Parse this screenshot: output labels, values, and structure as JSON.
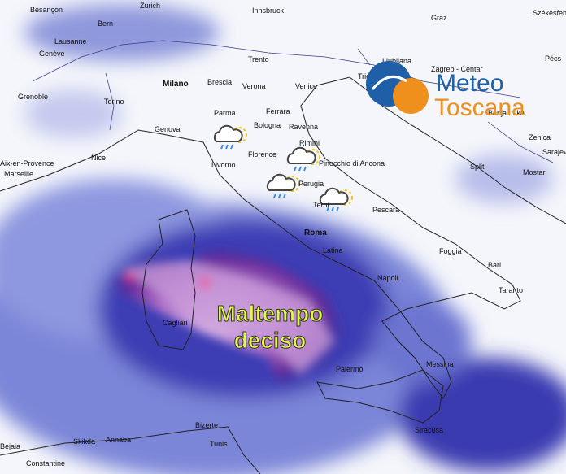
{
  "logo": {
    "line1": "Meteo",
    "line2": "Toscana"
  },
  "annotation": [
    "Maltempo",
    "deciso"
  ],
  "cities": [
    "Besançon",
    "Zurich",
    "Innsbruck",
    "Graz",
    "Székesfehé",
    "Bern",
    "Lausanne",
    "Genève",
    "Trento",
    "Ljubljana",
    "Zagreb - Centar",
    "Pécs",
    "Milano",
    "Brescia",
    "Verona",
    "Venice",
    "Trieste",
    "Grenoble",
    "Torino",
    "Parma",
    "Ferrara",
    "Bologna",
    "Ravenna",
    "Genova",
    "Rimini",
    "Banja Luka",
    "Zenica",
    "Sarajevo",
    "Nice",
    "Aix-en-Provence",
    "Marseille",
    "Livorno",
    "Florence",
    "Pinocchio di Ancona",
    "Split",
    "Mostar",
    "Perugia",
    "Terni",
    "Pescara",
    "Roma",
    "Latina",
    "Foggia",
    "Bari",
    "Taranto",
    "Napoli",
    "Cagliari",
    "Palermo",
    "Messina",
    "Siracusa",
    "Bizerte",
    "Tunis",
    "Annaba",
    "Skikda",
    "Bejaia",
    "Constantine"
  ]
}
